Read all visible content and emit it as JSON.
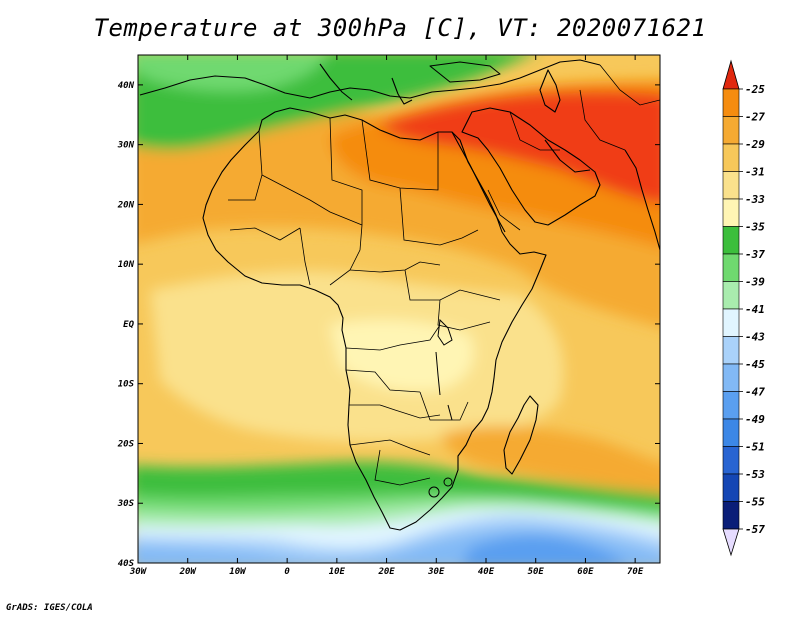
{
  "title": "Temperature at 300hPa [C], VT: 2020071621",
  "credit": "GrADS: IGES/COLA",
  "map": {
    "lon_labels": [
      "30W",
      "20W",
      "10W",
      "0",
      "10E",
      "20E",
      "30E",
      "40E",
      "50E",
      "60E",
      "70E"
    ],
    "lat_labels": [
      "40N",
      "30N",
      "20N",
      "10N",
      "EQ",
      "10S",
      "20S",
      "30S",
      "40S"
    ],
    "extent": {
      "lon_min": -30,
      "lon_max": 75,
      "lat_min": -40,
      "lat_max": 45
    }
  },
  "colorbar": {
    "labels": [
      "-25",
      "-27",
      "-29",
      "-31",
      "-33",
      "-35",
      "-37",
      "-39",
      "-41",
      "-43",
      "-45",
      "-47",
      "-49",
      "-51",
      "-53",
      "-55",
      "-57"
    ],
    "colors": [
      "#f03c14",
      "#f58c0f",
      "#f5aa32",
      "#f7c85a",
      "#fae18c",
      "#fff5b4",
      "#3cbe3c",
      "#6fd96f",
      "#a9ecae",
      "#e1f5ff",
      "#aad2fa",
      "#82b9f5",
      "#5a9ff0",
      "#3c87e6",
      "#2864d2",
      "#1446b4",
      "#0a1e78"
    ],
    "top_arrow_color": "#e0280f",
    "bottom_arrow_color": "#e6dcff"
  },
  "colors": {
    "ocean_base": "#f7c85a",
    "land_outline": "#000000"
  }
}
